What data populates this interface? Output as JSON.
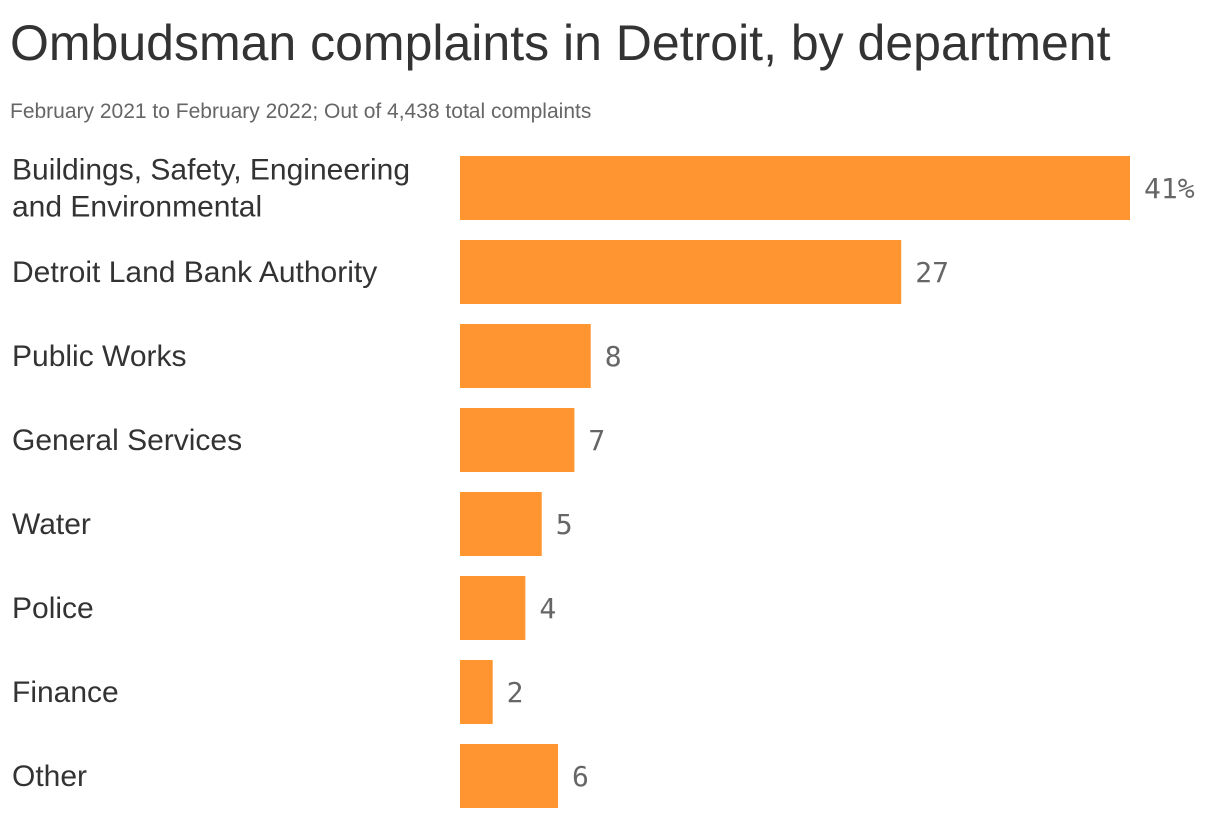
{
  "title": "Ombudsman complaints in Detroit, by department",
  "subtitle": "February 2021 to February 2022; Out of 4,438 total complaints",
  "colors": {
    "bar": "#FF9530",
    "category_text": "#333333",
    "value_text": "#666666"
  },
  "chart_data": {
    "type": "bar",
    "orientation": "horizontal",
    "title": "Ombudsman complaints in Detroit, by department",
    "subtitle": "February 2021 to February 2022; Out of 4,438 total complaints",
    "categories": [
      [
        "Buildings, Safety, Engineering",
        "and Environmental"
      ],
      [
        "Detroit Land Bank Authority"
      ],
      [
        "Public Works"
      ],
      [
        "General Services"
      ],
      [
        "Water"
      ],
      [
        "Police"
      ],
      [
        "Finance"
      ],
      [
        "Other"
      ]
    ],
    "values": [
      41,
      27,
      8,
      7,
      5,
      4,
      2,
      6
    ],
    "value_labels": [
      "41%",
      "27",
      "8",
      "7",
      "5",
      "4",
      "2",
      "6"
    ],
    "unit": "%",
    "xlim": [
      0,
      41
    ],
    "grid": false,
    "legend": "none"
  }
}
